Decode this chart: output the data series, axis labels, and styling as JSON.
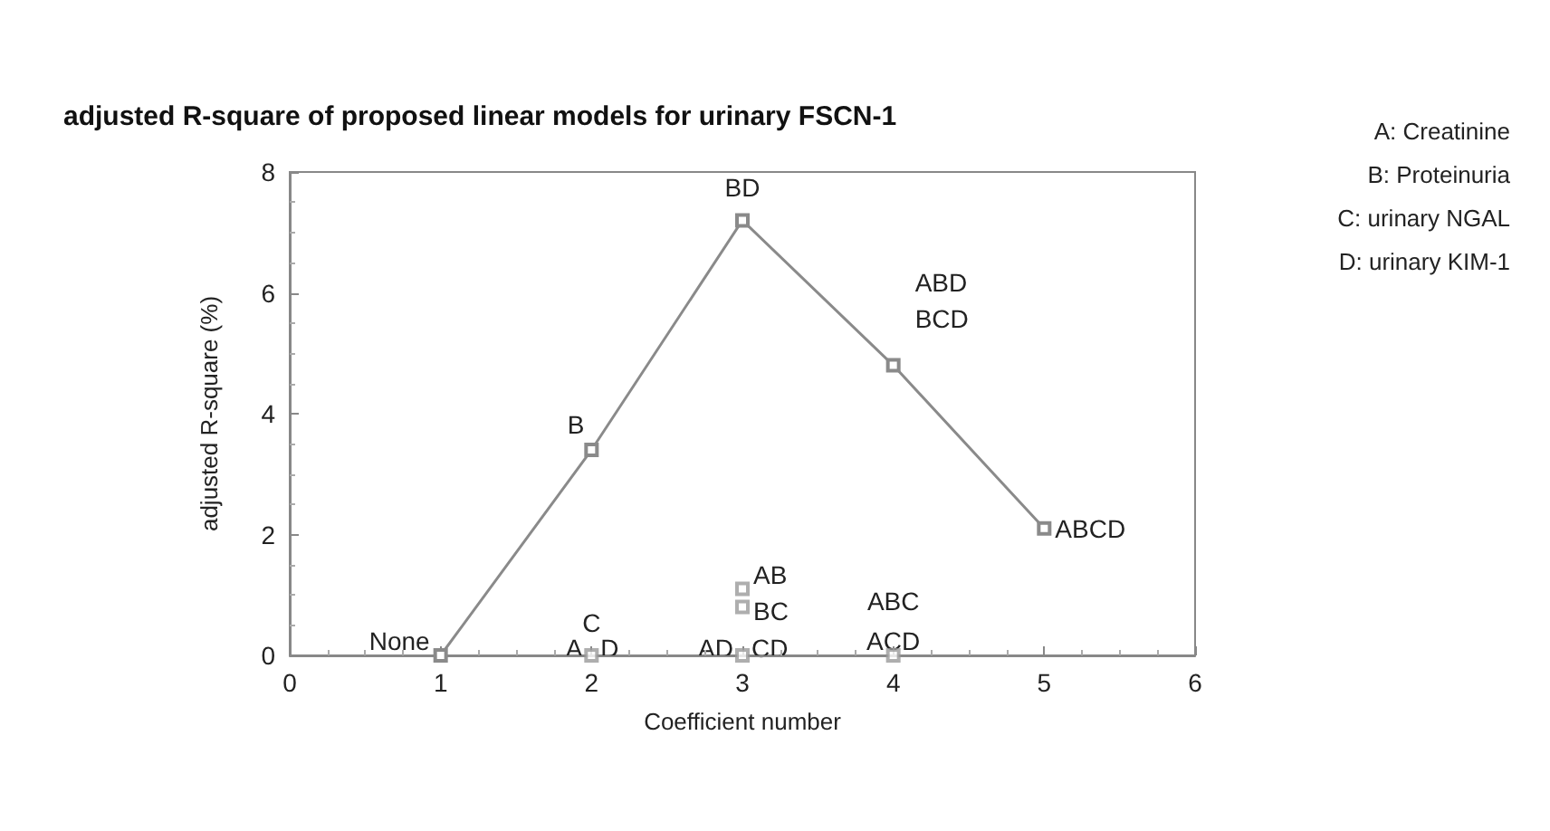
{
  "chart_data": {
    "type": "line",
    "title": "adjusted R-square of proposed linear models for urinary FSCN-1",
    "xlabel": "Coefficient number",
    "ylabel": "adjusted R-square (%)",
    "xlim": [
      0,
      6
    ],
    "xticks": [
      0,
      1,
      2,
      3,
      4,
      5,
      6
    ],
    "ylim": [
      0,
      8
    ],
    "yticks": [
      0,
      2,
      4,
      6,
      8
    ],
    "grid": false,
    "marker": "square",
    "line_style": "solid",
    "series": [
      {
        "color": "#8a8a8a",
        "x": [
          1,
          2,
          3,
          4,
          5
        ],
        "values": [
          0,
          3.4,
          7.2,
          4.8,
          2.1
        ]
      },
      {
        "type": "scatter",
        "color": "#9a9a9a",
        "x": [
          2,
          3,
          3,
          3,
          4
        ],
        "values": [
          0,
          1.1,
          0.8,
          0,
          0
        ]
      }
    ],
    "annotations": [
      {
        "text": "None",
        "x": 1,
        "y": 0
      },
      {
        "text": "B",
        "x": 2,
        "y": 3.4
      },
      {
        "text": "BD",
        "x": 3,
        "y": 7.2
      },
      {
        "text": "ABD",
        "x": 4,
        "y": 4.8
      },
      {
        "text": "BCD",
        "x": 4,
        "y": 4.8
      },
      {
        "text": "ABCD",
        "x": 5,
        "y": 2.1
      },
      {
        "text": "A",
        "x": 2,
        "y": 0
      },
      {
        "text": "C",
        "x": 2,
        "y": 0
      },
      {
        "text": "D",
        "x": 2,
        "y": 0
      },
      {
        "text": "AB",
        "x": 3,
        "y": 1.1
      },
      {
        "text": "BC",
        "x": 3,
        "y": 0.8
      },
      {
        "text": "AD",
        "x": 3,
        "y": 0
      },
      {
        "text": "CD",
        "x": 3,
        "y": 0
      },
      {
        "text": "ABC",
        "x": 4,
        "y": 0
      },
      {
        "text": "ACD",
        "x": 4,
        "y": 0
      },
      "A: Creatinine",
      "B: Proteinuria",
      "C: urinary NGAL",
      "D: urinary KIM-1"
    ]
  }
}
